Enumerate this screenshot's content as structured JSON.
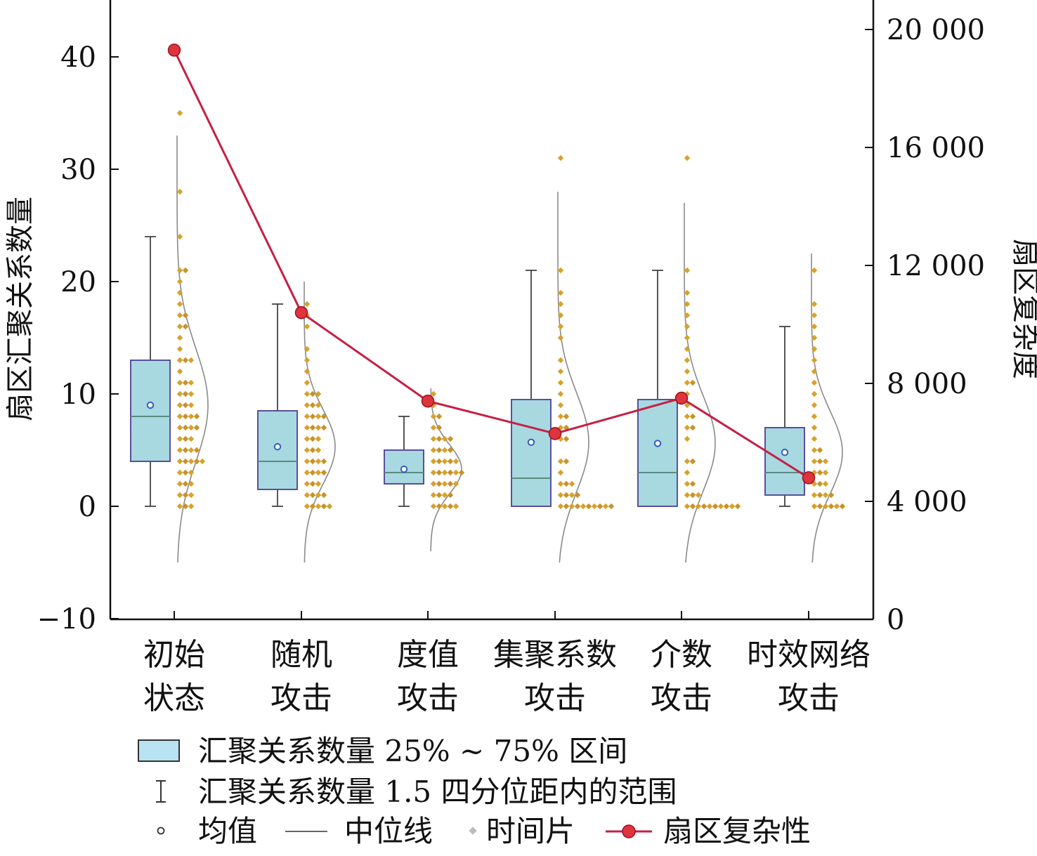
{
  "chart_data": {
    "type": "box",
    "title": "",
    "ylabel_left": "扇区汇聚关系数量",
    "ylabel_right": "扇区复杂度",
    "ylim_left": [
      -10,
      45
    ],
    "ylim_right": [
      0,
      21000
    ],
    "yticks_left": [
      {
        "v": -10,
        "label": "−10"
      },
      {
        "v": 0,
        "label": "0"
      },
      {
        "v": 10,
        "label": "10"
      },
      {
        "v": 20,
        "label": "20"
      },
      {
        "v": 30,
        "label": "30"
      },
      {
        "v": 40,
        "label": "40"
      }
    ],
    "yticks_right": [
      {
        "v": 0,
        "label": "0"
      },
      {
        "v": 4000,
        "label": "4 000"
      },
      {
        "v": 8000,
        "label": "8 000"
      },
      {
        "v": 12000,
        "label": "12 000"
      },
      {
        "v": 16000,
        "label": "16 000"
      },
      {
        "v": 20000,
        "label": "20 000"
      }
    ],
    "categories": [
      {
        "lines": [
          "初始",
          "状态"
        ]
      },
      {
        "lines": [
          "随机",
          "攻击"
        ]
      },
      {
        "lines": [
          "度值",
          "攻击"
        ]
      },
      {
        "lines": [
          "集聚系数",
          "攻击"
        ]
      },
      {
        "lines": [
          "介数",
          "攻击"
        ]
      },
      {
        "lines": [
          "时效网络",
          "攻击"
        ]
      }
    ],
    "boxes": [
      {
        "q1": 4,
        "median": 8,
        "q3": 13,
        "mean": 9,
        "whisker_low": 0,
        "whisker_high": 24
      },
      {
        "q1": 1.5,
        "median": 4,
        "q3": 8.5,
        "mean": 5.3,
        "whisker_low": 0,
        "whisker_high": 18
      },
      {
        "q1": 2,
        "median": 3,
        "q3": 5,
        "mean": 3.3,
        "whisker_low": 0,
        "whisker_high": 8
      },
      {
        "q1": 0,
        "median": 2.5,
        "q3": 9.5,
        "mean": 5.7,
        "whisker_low": 0,
        "whisker_high": 21
      },
      {
        "q1": 0,
        "median": 3,
        "q3": 9.5,
        "mean": 5.6,
        "whisker_low": 0,
        "whisker_high": 21
      },
      {
        "q1": 1,
        "median": 3,
        "q3": 7,
        "mean": 4.8,
        "whisker_low": 0,
        "whisker_high": 16
      }
    ],
    "time_slices": [
      [
        35,
        28,
        24,
        21,
        21,
        20,
        19,
        18,
        17,
        17,
        16,
        16,
        15,
        14,
        13,
        13,
        13,
        12,
        11,
        11,
        11,
        10,
        10,
        10,
        9,
        9,
        9,
        8,
        8,
        8,
        8,
        7,
        7,
        7,
        7,
        6,
        6,
        6,
        5,
        5,
        5,
        5,
        4,
        4,
        4,
        4,
        4,
        3,
        3,
        3,
        2,
        2,
        2,
        1,
        1,
        1,
        0,
        0,
        0
      ],
      [
        18,
        17,
        16,
        14,
        13,
        12,
        11,
        10,
        10,
        10,
        9,
        9,
        9,
        8,
        8,
        8,
        8,
        7,
        7,
        7,
        7,
        6,
        6,
        6,
        5,
        5,
        5,
        4,
        4,
        4,
        4,
        3,
        3,
        3,
        3,
        2,
        2,
        2,
        1,
        1,
        1,
        1,
        0,
        0,
        0,
        0,
        0
      ],
      [
        10,
        9,
        8,
        8,
        7,
        7,
        6,
        6,
        6,
        6,
        5,
        5,
        5,
        5,
        4,
        4,
        4,
        4,
        4,
        3,
        3,
        3,
        3,
        3,
        3,
        2,
        2,
        2,
        2,
        2,
        1,
        1,
        1,
        1,
        0,
        0,
        0,
        0,
        0
      ],
      [
        31,
        21,
        19,
        18,
        17,
        16,
        15,
        13,
        12,
        11,
        10,
        9,
        8,
        8,
        7,
        7,
        6,
        6,
        4,
        4,
        3,
        2,
        2,
        2,
        1,
        1,
        1,
        1,
        0,
        0,
        0,
        0,
        0,
        0,
        0,
        0,
        0,
        0
      ],
      [
        31,
        21,
        19,
        18,
        17,
        16,
        15,
        14,
        13,
        12,
        11,
        11,
        10,
        9,
        8,
        8,
        7,
        7,
        6,
        4,
        4,
        3,
        2,
        2,
        1,
        1,
        1,
        0,
        0,
        0,
        0,
        0,
        0,
        0,
        0,
        0,
        0
      ],
      [
        21,
        18,
        17,
        16,
        15,
        14,
        13,
        12,
        11,
        10,
        9,
        8,
        7,
        6,
        5,
        5,
        4,
        4,
        4,
        3,
        3,
        3,
        2,
        2,
        2,
        1,
        1,
        1,
        1,
        0,
        0,
        0,
        0,
        0,
        0
      ]
    ],
    "distribution_curve_range": [
      [
        -5,
        33
      ],
      [
        -5,
        20
      ],
      [
        -4,
        10.5
      ],
      [
        -5,
        28
      ],
      [
        -5,
        27
      ],
      [
        -5,
        22.5
      ]
    ],
    "sector_complexity": {
      "name": "扇区复杂性",
      "values": [
        19300,
        10400,
        7400,
        6300,
        7500,
        4800
      ]
    },
    "legend": {
      "box_label": "汇聚关系数量 25% ~ 75% 区间",
      "whisker_label": "汇聚关系数量 1.5 四分位距内的范围",
      "mean_label": "均值",
      "median_label": "中位线",
      "slice_label": "时间片",
      "line_label": "扇区复杂性"
    },
    "colors": {
      "box_fill": "#a8d8e0",
      "box_fill_light": "#b9e3f2",
      "box_stroke": "#5a4f9c",
      "whisker": "#444444",
      "median": "#5d8a80",
      "mean": "#2f5fc0",
      "slice_dot": "#d6a22c",
      "slice_dot_dark": "#c8922a",
      "curve": "#8a8a8a",
      "line": "#c51f45",
      "line_marker": "#e0343c"
    }
  }
}
